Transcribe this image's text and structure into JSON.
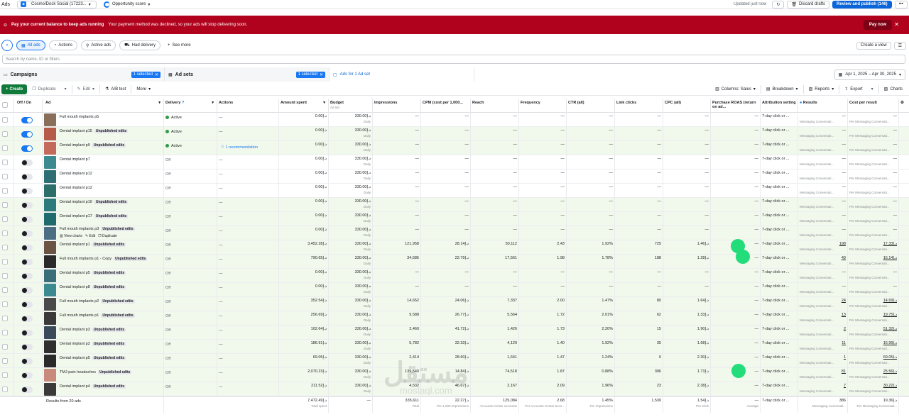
{
  "app_title": "Ads",
  "account": {
    "name": "Cosmo/Dock Social (17223...",
    "icon": "account-icon"
  },
  "opportunity": {
    "label": "Opportunity score"
  },
  "topbar": {
    "updated": "Updated just now",
    "discard": "Discard drafts",
    "publish": "Review and publish (146)",
    "more": "•••"
  },
  "banner": {
    "title": "Pay your current balance to keep ads running",
    "message": "Your payment method was declined, so your ads will stop delivering soon.",
    "pay_button": "Pay now",
    "close": "✕",
    "color": "#b0021d"
  },
  "filters": {
    "chips": [
      "All ads",
      "Actions",
      "Active ads",
      "Had delivery"
    ],
    "see_more": "See more",
    "create_view": "Create a view"
  },
  "search": {
    "placeholder": "Search by name, ID or filters"
  },
  "tabs": {
    "campaigns": "Campaigns",
    "campaigns_selected": "1 selected",
    "adsets": "Ad sets",
    "adsets_selected": "1 selected",
    "ads": "Ads for 1 Ad set",
    "date_range": "Apr 1, 2025 – Apr 30, 2025"
  },
  "toolbar": {
    "create": "Create",
    "duplicate": "Duplicate",
    "edit": "Edit",
    "ab_test": "A/B test",
    "more": "More",
    "columns": "Columns: Sales",
    "breakdown": "Breakdown",
    "reports": "Reports",
    "export": "Export",
    "charts": "Charts"
  },
  "columns": {
    "offon": "Off / On",
    "ad": "Ad",
    "delivery": "Delivery",
    "actions": "Actions",
    "amount": "Amount spent",
    "budget": "Budget",
    "budget_sub": "Ad set",
    "impressions": "Impressions",
    "cpm": "CPM (cost per 1,000...",
    "reach": "Reach",
    "frequency": "Frequency",
    "ctr": "CTR (all)",
    "link_clicks": "Link clicks",
    "cpc": "CPC (all)",
    "roas": "Purchase ROAS (return on ad...",
    "attribution": "Attribution setting",
    "results": "Results",
    "cost_per_result": "Cost per result"
  },
  "row_defaults": {
    "budget": "330.00د.إ",
    "budget_sub": "Daily",
    "attribution": "7-day click or ...",
    "results_sub": "Messaging Conversati...",
    "cost_sub": "Per Messaging Conversati...",
    "dash": "—"
  },
  "hover_actions": {
    "view_charts": "View charts",
    "edit": "Edit",
    "duplicate": "Duplicate"
  },
  "rows": [
    {
      "on": true,
      "name": "Full mouth implants p5",
      "badge": "",
      "delivery": "Active",
      "amount": "0.00د.إ",
      "impressions": "—",
      "cpm": "—",
      "reach": "—",
      "frequency": "—",
      "ctr": "—",
      "link_clicks": "—",
      "cpc": "—",
      "results": "—",
      "cost": "—",
      "rec": ""
    },
    {
      "on": true,
      "name": "Dental implant p15",
      "badge": "Unpublished edits",
      "delivery": "Active",
      "amount": "0.00د.إ",
      "impressions": "—",
      "cpm": "—",
      "reach": "—",
      "frequency": "—",
      "ctr": "—",
      "link_clicks": "—",
      "cpc": "—",
      "results": "—",
      "cost": "—",
      "rec": ""
    },
    {
      "on": true,
      "name": "Dental implant p9",
      "badge": "Unpublished edits",
      "delivery": "Active",
      "amount": "0.00د.إ",
      "impressions": "—",
      "cpm": "—",
      "reach": "—",
      "frequency": "—",
      "ctr": "—",
      "link_clicks": "—",
      "cpc": "—",
      "results": "—",
      "cost": "—",
      "rec": "1 recommendation"
    },
    {
      "on": false,
      "name": "Dental implant p7",
      "badge": "",
      "delivery": "Off",
      "amount": "0.00د.إ",
      "impressions": "—",
      "cpm": "—",
      "reach": "—",
      "frequency": "—",
      "ctr": "—",
      "link_clicks": "—",
      "cpc": "—",
      "results": "—",
      "cost": "—",
      "rec": ""
    },
    {
      "on": false,
      "name": "Dental implant p12",
      "badge": "",
      "delivery": "Off",
      "amount": "0.00د.إ",
      "impressions": "—",
      "cpm": "—",
      "reach": "—",
      "frequency": "—",
      "ctr": "—",
      "link_clicks": "—",
      "cpc": "—",
      "results": "—",
      "cost": "—",
      "rec": ""
    },
    {
      "on": false,
      "name": "Dental implant p12",
      "badge": "",
      "delivery": "Off",
      "amount": "0.00د.إ",
      "impressions": "—",
      "cpm": "—",
      "reach": "—",
      "frequency": "—",
      "ctr": "—",
      "link_clicks": "—",
      "cpc": "—",
      "results": "—",
      "cost": "—",
      "rec": ""
    },
    {
      "on": false,
      "name": "Dental implant p10",
      "badge": "Unpublished edits",
      "delivery": "Off",
      "amount": "0.00د.إ",
      "impressions": "—",
      "cpm": "—",
      "reach": "—",
      "frequency": "—",
      "ctr": "—",
      "link_clicks": "—",
      "cpc": "—",
      "results": "—",
      "cost": "—",
      "rec": ""
    },
    {
      "on": false,
      "name": "Dental implant p17",
      "badge": "Unpublished edits",
      "delivery": "Off",
      "amount": "0.00د.إ",
      "impressions": "—",
      "cpm": "—",
      "reach": "—",
      "frequency": "—",
      "ctr": "—",
      "link_clicks": "—",
      "cpc": "—",
      "results": "—",
      "cost": "—",
      "rec": ""
    },
    {
      "on": false,
      "name": "Full mouth implants p3",
      "badge": "Unpublished edits",
      "delivery": "Off",
      "amount": "0.00د.إ",
      "impressions": "—",
      "cpm": "—",
      "reach": "—",
      "frequency": "—",
      "ctr": "—",
      "link_clicks": "—",
      "cpc": "—",
      "results": "—",
      "cost": "—",
      "rec": "",
      "hover": true
    },
    {
      "on": false,
      "name": "Dental implant p1",
      "badge": "Unpublished edits",
      "delivery": "Off",
      "amount": "3,452.28د.إ",
      "impressions": "121,958",
      "cpm": "28.14د.إ",
      "reach": "50,112",
      "frequency": "2.43",
      "ctr": "1.92%",
      "link_clicks": "725",
      "cpc": "1.46د.إ",
      "results": "198",
      "cost": "17.33د.إ",
      "rec": ""
    },
    {
      "on": false,
      "name": "Full mouth implants p1 - Copy",
      "badge": "Unpublished edits",
      "delivery": "Off",
      "amount": "790.65د.إ",
      "impressions": "34,685",
      "cpm": "22.79د.إ",
      "reach": "17,561",
      "frequency": "1.98",
      "ctr": "1.78%",
      "link_clicks": "188",
      "cpc": "1.28د.إ",
      "results": "49",
      "cost": "16.14د.إ",
      "rec": ""
    },
    {
      "on": false,
      "name": "Dental implant p5",
      "badge": "Unpublished edits",
      "delivery": "Off",
      "amount": "0.00د.إ",
      "impressions": "—",
      "cpm": "—",
      "reach": "—",
      "frequency": "—",
      "ctr": "—",
      "link_clicks": "—",
      "cpc": "—",
      "results": "—",
      "cost": "—",
      "rec": ""
    },
    {
      "on": false,
      "name": "Dental implant p8",
      "badge": "Unpublished edits",
      "delivery": "Off",
      "amount": "0.00د.إ",
      "impressions": "—",
      "cpm": "—",
      "reach": "—",
      "frequency": "—",
      "ctr": "—",
      "link_clicks": "—",
      "cpc": "—",
      "results": "—",
      "cost": "—",
      "rec": ""
    },
    {
      "on": false,
      "name": "Full mouth implants p2",
      "badge": "Unpublished edits",
      "delivery": "Off",
      "amount": "352.54د.إ",
      "impressions": "14,652",
      "cpm": "24.06د.إ",
      "reach": "7,337",
      "frequency": "2.00",
      "ctr": "1.47%",
      "link_clicks": "80",
      "cpc": "1.64د.إ",
      "results": "24",
      "cost": "14.69د.إ",
      "rec": ""
    },
    {
      "on": false,
      "name": "Full mouth implants p1",
      "badge": "Unpublished edits",
      "delivery": "Off",
      "amount": "256.69د.إ",
      "impressions": "9,588",
      "cpm": "26.77د.إ",
      "reach": "5,564",
      "frequency": "1.72",
      "ctr": "2.01%",
      "link_clicks": "62",
      "cpc": "1.33د.إ",
      "results": "13",
      "cost": "19.75د.إ",
      "rec": ""
    },
    {
      "on": false,
      "name": "Dental implant p3",
      "badge": "Unpublished edits",
      "delivery": "Off",
      "amount": "102.64د.إ",
      "impressions": "2,460",
      "cpm": "41.72د.إ",
      "reach": "1,426",
      "frequency": "1.73",
      "ctr": "2.20%",
      "link_clicks": "15",
      "cpc": "1.90د.إ",
      "results": "2",
      "cost": "51.32د.إ",
      "rec": ""
    },
    {
      "on": false,
      "name": "Dental implant p2",
      "badge": "Unpublished edits",
      "delivery": "Off",
      "amount": "186.91د.إ",
      "impressions": "5,782",
      "cpm": "32.33د.إ",
      "reach": "4,120",
      "frequency": "1.40",
      "ctr": "1.92%",
      "link_clicks": "35",
      "cpc": "1.68د.إ",
      "results": "11",
      "cost": "16.99د.إ",
      "rec": ""
    },
    {
      "on": false,
      "name": "Dental implant p5",
      "badge": "Unpublished edits",
      "delivery": "Off",
      "amount": "69.05د.إ",
      "impressions": "2,414",
      "cpm": "28.60د.إ",
      "reach": "1,641",
      "frequency": "1.47",
      "ctr": "1.24%",
      "link_clicks": "6",
      "cpc": "2.30د.إ",
      "results": "1",
      "cost": "69.05د.إ",
      "rec": ""
    },
    {
      "on": false,
      "name": "TMJ pain headaches",
      "badge": "Unpublished edits",
      "delivery": "Off",
      "amount": "2,070.23د.إ",
      "impressions": "139,540",
      "cpm": "14.84د.إ",
      "reach": "74,518",
      "frequency": "1.87",
      "ctr": "0.88%",
      "link_clicks": "396",
      "cpc": "1.73د.إ",
      "results": "81",
      "cost": "25.56د.إ",
      "rec": ""
    },
    {
      "on": false,
      "name": "Dental implant p4",
      "badge": "Unpublished edits",
      "delivery": "Off",
      "amount": "211.52د.إ",
      "impressions": "4,532",
      "cpm": "46.67د.إ",
      "reach": "2,167",
      "frequency": "2.09",
      "ctr": "1.96%",
      "link_clicks": "23",
      "cpc": "2.38د.إ",
      "results": "7",
      "cost": "30.22د.إ",
      "rec": ""
    }
  ],
  "footer": {
    "label": "Results from 20 ads",
    "amount": "7,472.49د.إ",
    "amount_sub": "Total spent",
    "budget": "—",
    "impressions": "335,611",
    "impressions_sub": "Total",
    "cpm": "22.27د.إ",
    "cpm_sub": "Per 1,000 Impressions",
    "reach": "125,084",
    "reach_sub": "Accounts Center accounts",
    "frequency": "2.68",
    "frequency_sub": "Per Accounts Center acco...",
    "ctr": "1.45%",
    "ctr_sub": "Per Impressions",
    "link_clicks": "1,530",
    "cpc": "1.54د.إ",
    "cpc_sub": "Per Click",
    "roas": "—",
    "roas_sub": "Average",
    "attribution": "7-day click or ...",
    "results": "386",
    "results_sub": "Messaging conversati...",
    "cost": "19.36د.إ",
    "cost_sub": "Per Messaging Conversati..."
  },
  "watermark": {
    "text": "مستقل",
    "sub": "mostaql.com"
  },
  "colors": {
    "accent": "#1877f2",
    "edited_row": "#f1f8ec",
    "active_dot": "#2e9b48",
    "blob": "#22dd7a"
  }
}
